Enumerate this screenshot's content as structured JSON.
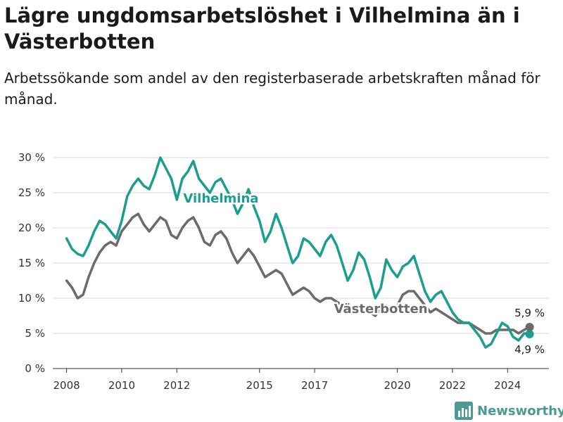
{
  "title": "Lägre ungdomsarbetslöshet i Vilhelmina än i Västerbotten",
  "subtitle": "Arbetssökande som andel av den registerbaserade arbetskraften månad för månad.",
  "brand": "Newsworthy",
  "colors": {
    "vilhelmina": "#1a9e8f",
    "vasterbotten": "#6b6b6b",
    "grid": "#d9d9d9",
    "axis": "#333333",
    "brand": "#4a9a96"
  },
  "chart_data": {
    "type": "line",
    "xlim": [
      2007.5,
      2025.5
    ],
    "ylim": [
      0,
      30
    ],
    "yticks": [
      0,
      5,
      10,
      15,
      20,
      25,
      30
    ],
    "ytick_labels": [
      "0 %",
      "5 %",
      "10 %",
      "15 %",
      "20 %",
      "25 %",
      "30 %"
    ],
    "xticks": [
      2008,
      2010,
      2012,
      2015,
      2017,
      2020,
      2022,
      2024
    ],
    "xtick_labels": [
      "2008",
      "2010",
      "2012",
      "2015",
      "2017",
      "2020",
      "2022",
      "2024"
    ],
    "grid": true,
    "series": [
      {
        "name": "Vilhelmina",
        "color": "#1a9e8f",
        "end_label": "4,9 %",
        "points": [
          [
            2008.0,
            18.5
          ],
          [
            2008.2,
            17.0
          ],
          [
            2008.4,
            16.3
          ],
          [
            2008.6,
            16.0
          ],
          [
            2008.8,
            17.5
          ],
          [
            2009.0,
            19.5
          ],
          [
            2009.2,
            21.0
          ],
          [
            2009.4,
            20.5
          ],
          [
            2009.6,
            19.5
          ],
          [
            2009.8,
            18.5
          ],
          [
            2010.0,
            21.0
          ],
          [
            2010.2,
            24.5
          ],
          [
            2010.4,
            26.0
          ],
          [
            2010.6,
            27.0
          ],
          [
            2010.8,
            26.0
          ],
          [
            2011.0,
            25.5
          ],
          [
            2011.2,
            27.5
          ],
          [
            2011.4,
            30.0
          ],
          [
            2011.6,
            28.5
          ],
          [
            2011.8,
            27.0
          ],
          [
            2012.0,
            24.0
          ],
          [
            2012.2,
            27.0
          ],
          [
            2012.4,
            28.0
          ],
          [
            2012.6,
            29.5
          ],
          [
            2012.8,
            27.0
          ],
          [
            2013.0,
            26.0
          ],
          [
            2013.2,
            25.0
          ],
          [
            2013.4,
            26.5
          ],
          [
            2013.6,
            27.0
          ],
          [
            2013.8,
            25.5
          ],
          [
            2014.0,
            24.0
          ],
          [
            2014.2,
            22.0
          ],
          [
            2014.4,
            23.5
          ],
          [
            2014.6,
            25.5
          ],
          [
            2014.8,
            23.0
          ],
          [
            2015.0,
            21.0
          ],
          [
            2015.2,
            18.0
          ],
          [
            2015.4,
            19.5
          ],
          [
            2015.6,
            22.0
          ],
          [
            2015.8,
            20.0
          ],
          [
            2016.0,
            17.5
          ],
          [
            2016.2,
            15.0
          ],
          [
            2016.4,
            16.0
          ],
          [
            2016.6,
            18.5
          ],
          [
            2016.8,
            18.0
          ],
          [
            2017.0,
            17.0
          ],
          [
            2017.2,
            16.0
          ],
          [
            2017.4,
            18.0
          ],
          [
            2017.6,
            19.0
          ],
          [
            2017.8,
            17.5
          ],
          [
            2018.0,
            15.0
          ],
          [
            2018.2,
            12.5
          ],
          [
            2018.4,
            14.0
          ],
          [
            2018.6,
            16.5
          ],
          [
            2018.8,
            15.5
          ],
          [
            2019.0,
            13.0
          ],
          [
            2019.2,
            10.0
          ],
          [
            2019.4,
            11.5
          ],
          [
            2019.6,
            15.5
          ],
          [
            2019.8,
            14.0
          ],
          [
            2020.0,
            13.0
          ],
          [
            2020.2,
            14.5
          ],
          [
            2020.4,
            15.0
          ],
          [
            2020.6,
            16.0
          ],
          [
            2020.8,
            13.5
          ],
          [
            2021.0,
            11.0
          ],
          [
            2021.2,
            9.5
          ],
          [
            2021.4,
            10.5
          ],
          [
            2021.6,
            11.0
          ],
          [
            2021.8,
            9.5
          ],
          [
            2022.0,
            8.0
          ],
          [
            2022.2,
            7.0
          ],
          [
            2022.4,
            6.5
          ],
          [
            2022.6,
            6.5
          ],
          [
            2022.8,
            5.5
          ],
          [
            2023.0,
            4.5
          ],
          [
            2023.2,
            3.0
          ],
          [
            2023.4,
            3.5
          ],
          [
            2023.6,
            5.0
          ],
          [
            2023.8,
            6.5
          ],
          [
            2024.0,
            6.0
          ],
          [
            2024.2,
            4.5
          ],
          [
            2024.4,
            4.0
          ],
          [
            2024.6,
            5.0
          ],
          [
            2024.8,
            4.9
          ]
        ]
      },
      {
        "name": "Västerbotten",
        "color": "#6b6b6b",
        "end_label": "5,9 %",
        "points": [
          [
            2008.0,
            12.5
          ],
          [
            2008.2,
            11.5
          ],
          [
            2008.4,
            10.0
          ],
          [
            2008.6,
            10.5
          ],
          [
            2008.8,
            13.0
          ],
          [
            2009.0,
            15.0
          ],
          [
            2009.2,
            16.5
          ],
          [
            2009.4,
            17.5
          ],
          [
            2009.6,
            18.0
          ],
          [
            2009.8,
            17.5
          ],
          [
            2010.0,
            19.5
          ],
          [
            2010.2,
            20.5
          ],
          [
            2010.4,
            21.5
          ],
          [
            2010.6,
            22.0
          ],
          [
            2010.8,
            20.5
          ],
          [
            2011.0,
            19.5
          ],
          [
            2011.2,
            20.5
          ],
          [
            2011.4,
            21.5
          ],
          [
            2011.6,
            21.0
          ],
          [
            2011.8,
            19.0
          ],
          [
            2012.0,
            18.5
          ],
          [
            2012.2,
            20.0
          ],
          [
            2012.4,
            21.0
          ],
          [
            2012.6,
            21.5
          ],
          [
            2012.8,
            20.0
          ],
          [
            2013.0,
            18.0
          ],
          [
            2013.2,
            17.5
          ],
          [
            2013.4,
            19.0
          ],
          [
            2013.6,
            19.5
          ],
          [
            2013.8,
            18.5
          ],
          [
            2014.0,
            16.5
          ],
          [
            2014.2,
            15.0
          ],
          [
            2014.4,
            16.0
          ],
          [
            2014.6,
            17.0
          ],
          [
            2014.8,
            16.0
          ],
          [
            2015.0,
            14.5
          ],
          [
            2015.2,
            13.0
          ],
          [
            2015.4,
            13.5
          ],
          [
            2015.6,
            14.0
          ],
          [
            2015.8,
            13.5
          ],
          [
            2016.0,
            12.0
          ],
          [
            2016.2,
            10.5
          ],
          [
            2016.4,
            11.0
          ],
          [
            2016.6,
            11.5
          ],
          [
            2016.8,
            11.0
          ],
          [
            2017.0,
            10.0
          ],
          [
            2017.2,
            9.5
          ],
          [
            2017.4,
            10.0
          ],
          [
            2017.6,
            10.0
          ],
          [
            2017.8,
            9.5
          ],
          [
            2018.0,
            9.0
          ],
          [
            2018.2,
            8.5
          ],
          [
            2018.4,
            8.0
          ],
          [
            2018.6,
            8.0
          ],
          [
            2018.8,
            8.5
          ],
          [
            2019.0,
            8.0
          ],
          [
            2019.2,
            7.5
          ],
          [
            2019.4,
            8.5
          ],
          [
            2019.6,
            9.0
          ],
          [
            2019.8,
            8.5
          ],
          [
            2020.0,
            9.0
          ],
          [
            2020.2,
            10.5
          ],
          [
            2020.4,
            11.0
          ],
          [
            2020.6,
            11.0
          ],
          [
            2020.8,
            10.0
          ],
          [
            2021.0,
            9.0
          ],
          [
            2021.2,
            8.0
          ],
          [
            2021.4,
            8.5
          ],
          [
            2021.6,
            8.0
          ],
          [
            2021.8,
            7.5
          ],
          [
            2022.0,
            7.0
          ],
          [
            2022.2,
            6.5
          ],
          [
            2022.4,
            6.5
          ],
          [
            2022.6,
            6.5
          ],
          [
            2022.8,
            6.0
          ],
          [
            2023.0,
            5.5
          ],
          [
            2023.2,
            5.0
          ],
          [
            2023.4,
            5.0
          ],
          [
            2023.6,
            5.5
          ],
          [
            2023.8,
            5.5
          ],
          [
            2024.0,
            5.5
          ],
          [
            2024.2,
            5.5
          ],
          [
            2024.4,
            5.0
          ],
          [
            2024.6,
            5.5
          ],
          [
            2024.8,
            5.9
          ]
        ]
      }
    ],
    "series_labels": [
      {
        "series": "Vilhelmina",
        "text": "Vilhelmina",
        "at": [
          2013.6,
          23.6
        ]
      },
      {
        "series": "Västerbotten",
        "text": "Västerbotten",
        "at": [
          2019.4,
          7.9
        ]
      }
    ]
  }
}
